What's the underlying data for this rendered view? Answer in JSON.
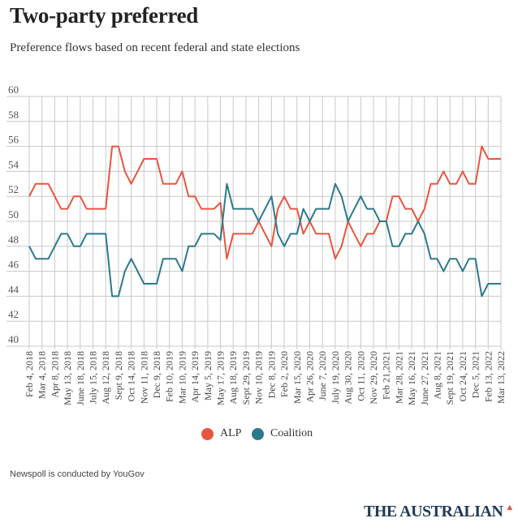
{
  "chart_data": {
    "type": "line",
    "title": "Two-party preferred",
    "subtitle": "Preference flows based on recent federal and state elections",
    "xlabel": "",
    "ylabel": "",
    "ylim": [
      40,
      60
    ],
    "yticks": [
      40,
      42,
      44,
      46,
      48,
      50,
      52,
      54,
      56,
      58,
      60
    ],
    "x_tick_labels": [
      "Feb 4, 2018",
      "Mar 4, 2018",
      "Apr 8, 2018",
      "May 13, 2018",
      "June 18, 2018",
      "July 15, 2018",
      "Aug 12, 2018",
      "Sept 9, 2018",
      "Oct 14, 2018",
      "Nov 11, 2018",
      "Dec 9, 2018",
      "Feb 10, 2019",
      "Mar 10, 2019",
      "Apr 14, 2019",
      "May 5, 2019",
      "May 17, 2019",
      "Aug 18, 2019",
      "Sept 29, 2019",
      "Nov 10, 2019",
      "Dec 8, 2019",
      "Feb 2, 2020",
      "Mar 15, 2020",
      "Apr 26, 2020",
      "June 7, 2020",
      "July 19, 2020",
      "Aug 30, 2020",
      "Oct 11, 2020",
      "Nov 29, 2020",
      "Feb 21,2021",
      "Mar 28, 2021",
      "May 16, 2021",
      "June 27, 2021",
      "Aug 8, 2021",
      "Sept 19, 2021",
      "Oct 24, 2021",
      "Dec 5, 2021",
      "Feb 13, 2022",
      "Mar 13, 2022"
    ],
    "grid": true,
    "legend_position": "bottom-center",
    "series": [
      {
        "name": "ALP",
        "color": "#e8553f",
        "values": [
          52,
          53,
          53,
          53,
          52,
          51,
          51,
          52,
          52,
          51,
          51,
          51,
          51,
          56,
          56,
          54,
          53,
          54,
          55,
          55,
          55,
          53,
          53,
          53,
          54,
          52,
          52,
          51,
          51,
          51,
          51.5,
          47,
          49,
          49,
          49,
          49,
          50,
          49,
          48,
          51,
          52,
          51,
          51,
          49,
          50,
          49,
          49,
          49,
          47,
          48,
          50,
          49,
          48,
          49,
          49,
          50,
          50,
          52,
          52,
          51,
          51,
          50,
          51,
          53,
          53,
          54,
          53,
          53,
          54,
          53,
          53,
          56,
          55,
          55,
          55
        ]
      },
      {
        "name": "Coalition",
        "color": "#2a7a8c",
        "values": [
          48,
          47,
          47,
          47,
          48,
          49,
          49,
          48,
          48,
          49,
          49,
          49,
          49,
          44,
          44,
          46,
          47,
          46,
          45,
          45,
          45,
          47,
          47,
          47,
          46,
          48,
          48,
          49,
          49,
          49,
          48.5,
          53,
          51,
          51,
          51,
          51,
          50,
          51,
          52,
          49,
          48,
          49,
          49,
          51,
          50,
          51,
          51,
          51,
          53,
          52,
          50,
          51,
          52,
          51,
          51,
          50,
          50,
          48,
          48,
          49,
          49,
          50,
          49,
          47,
          47,
          46,
          47,
          47,
          46,
          47,
          47,
          44,
          45,
          45,
          45
        ]
      }
    ]
  },
  "footer": {
    "note": "Newspoll is conducted by YouGov",
    "logo": "THE AUSTRALIAN"
  }
}
